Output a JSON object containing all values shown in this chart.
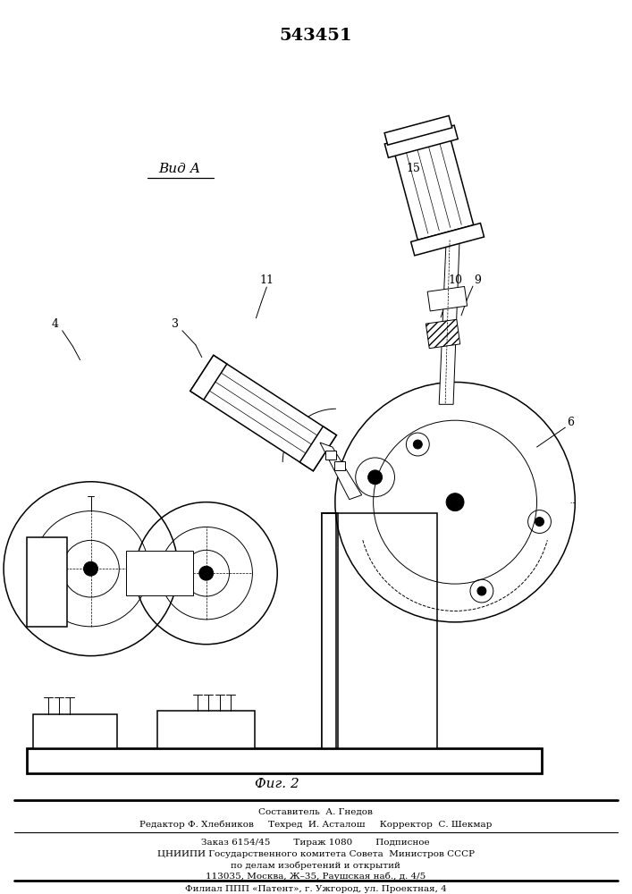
{
  "title_number": "543451",
  "fig_label": "Фиг. 2",
  "view_label": "Вид А",
  "bg_color": "#ffffff",
  "line_color": "#000000",
  "footer_lines": [
    "Составитель  А. Гнедов",
    "Редактор Ф. Хлебников     Техред  И. Асталош     Корректор  С. Шекмар",
    "Заказ 6154/45        Тираж 1080        Подписное",
    "ЦНИИПИ Государственного комитета Совета  Министров СССР",
    "по делам изобретений и открытий",
    "113035, Москва, Ж–35, Раушская наб., д. 4/5",
    "Филиал ППП «Патент», г. Ужгород, ул. Проектная, 4"
  ]
}
